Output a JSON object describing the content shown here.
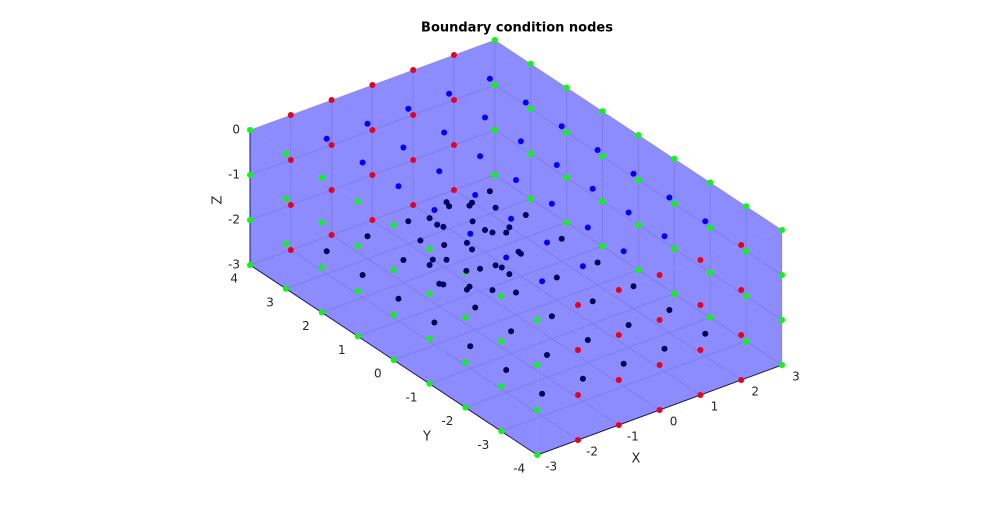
{
  "chart_data": {
    "type": "scatter3",
    "title": "Boundary condition nodes",
    "xlabel": "X",
    "ylabel": "Y",
    "zlabel": "Z",
    "xlim": [
      -3,
      3
    ],
    "ylim": [
      -4,
      4
    ],
    "zlim": [
      -3,
      0
    ],
    "xticks": [
      -3,
      -2,
      -1,
      0,
      1,
      2,
      3
    ],
    "yticks": [
      -4,
      -3,
      -2,
      -1,
      0,
      1,
      2,
      3,
      4
    ],
    "zticks": [
      -3,
      -2,
      -1,
      0
    ],
    "grid": true,
    "box_color": "#0000ff",
    "series": [
      {
        "color": "#000050",
        "x": [
          -2,
          -2,
          -2,
          -2,
          -2,
          -2,
          -2,
          -1,
          -1,
          -1,
          -1,
          -1,
          -1,
          -1,
          0,
          0,
          0,
          0,
          0,
          0,
          0,
          1,
          1,
          1,
          1,
          1,
          1,
          1,
          2,
          2,
          2,
          2,
          2,
          2,
          2
        ],
        "y": [
          3,
          2,
          1,
          0,
          -1,
          -2,
          -3,
          3,
          2,
          1,
          0,
          -1,
          -2,
          -3,
          3,
          2,
          1,
          0,
          -1,
          -2,
          -3,
          3,
          2,
          1,
          0,
          -1,
          -2,
          -3,
          3,
          2,
          1,
          0,
          -1,
          -2,
          -3
        ],
        "z": [
          -2.5,
          -2.5,
          -2.5,
          -2.5,
          -2.5,
          -2.5,
          -2.5,
          -2.5,
          -2.5,
          -2.5,
          -2.5,
          -2.5,
          -2.5,
          -2.5,
          -2.5,
          -2.5,
          -2.5,
          -2.5,
          -2.5,
          -2.5,
          -2.5,
          -2.5,
          -2.5,
          -2.5,
          -2.5,
          -2.5,
          -2.5,
          -2.5,
          -2.5,
          -2.5,
          -2.5,
          -2.5,
          -2.5,
          -2.5,
          -2.5
        ]
      },
      {
        "color": "#00ff00",
        "x": [
          -3,
          -3,
          -3,
          -3,
          -3,
          -3,
          -3,
          -3,
          -3,
          -3,
          -3,
          -3,
          -3,
          -3,
          -3,
          -3,
          -3,
          -3,
          -3,
          -3,
          -3,
          -3,
          -3,
          -3,
          -3,
          -3,
          -3,
          -3,
          -3,
          -3,
          -3,
          -3,
          -3,
          -3,
          -3,
          -3,
          3,
          3,
          3,
          3,
          3,
          3,
          3,
          3,
          3,
          3,
          3,
          3,
          3,
          3,
          3,
          3,
          3,
          3,
          3,
          3,
          3,
          3,
          3,
          3,
          3,
          3,
          3,
          3,
          3,
          3,
          3,
          3,
          3,
          3,
          3,
          3
        ],
        "y": [
          4,
          4,
          4,
          4,
          3,
          3,
          3,
          3,
          2,
          2,
          2,
          2,
          1,
          1,
          1,
          1,
          0,
          0,
          0,
          0,
          -1,
          -1,
          -1,
          -1,
          -2,
          -2,
          -2,
          -2,
          -3,
          -3,
          -3,
          -3,
          -4,
          -4,
          -4,
          -4,
          4,
          4,
          4,
          4,
          3,
          3,
          3,
          3,
          2,
          2,
          2,
          2,
          1,
          1,
          1,
          1,
          0,
          0,
          0,
          0,
          -1,
          -1,
          -1,
          -1,
          -2,
          -2,
          -2,
          -2,
          -3,
          -3,
          -3,
          -3,
          -4,
          -4,
          -4,
          -4
        ],
        "z": [
          0,
          -1,
          -2,
          -3,
          0,
          -1,
          -2,
          -3,
          0,
          -1,
          -2,
          -3,
          0,
          -1,
          -2,
          -3,
          0,
          -1,
          -2,
          -3,
          0,
          -1,
          -2,
          -3,
          0,
          -1,
          -2,
          -3,
          0,
          -1,
          -2,
          -3,
          0,
          -1,
          -2,
          -3,
          0,
          -1,
          -2,
          -3,
          0,
          -1,
          -2,
          -3,
          0,
          -1,
          -2,
          -3,
          0,
          -1,
          -2,
          -3,
          0,
          -1,
          -2,
          -3,
          0,
          -1,
          -2,
          -3,
          0,
          -1,
          -2,
          -3,
          0,
          -1,
          -2,
          -3,
          0,
          -1,
          -2,
          -3
        ]
      },
      {
        "color": "#e8001c",
        "x": [
          -2,
          -2,
          -2,
          -2,
          -1,
          -1,
          -1,
          -1,
          0,
          0,
          0,
          0,
          1,
          1,
          1,
          1,
          2,
          2,
          2,
          2,
          -2,
          -2,
          -2,
          -2,
          -1,
          -1,
          -1,
          -1,
          0,
          0,
          0,
          0,
          1,
          1,
          1,
          1,
          2,
          2,
          2,
          2
        ],
        "y": [
          4,
          4,
          4,
          4,
          4,
          4,
          4,
          4,
          4,
          4,
          4,
          4,
          4,
          4,
          4,
          4,
          4,
          4,
          4,
          4,
          -4,
          -4,
          -4,
          -4,
          -4,
          -4,
          -4,
          -4,
          -4,
          -4,
          -4,
          -4,
          -4,
          -4,
          -4,
          -4,
          -4,
          -4,
          -4,
          -4
        ],
        "z": [
          0,
          -1,
          -2,
          -3,
          0,
          -1,
          -2,
          -3,
          0,
          -1,
          -2,
          -3,
          0,
          -1,
          -2,
          -3,
          0,
          -1,
          -2,
          -3,
          0,
          -1,
          -2,
          -3,
          0,
          -1,
          -2,
          -3,
          0,
          -1,
          -2,
          -3,
          0,
          -1,
          -2,
          -3,
          0,
          -1,
          -2,
          -3
        ]
      },
      {
        "color": "#0000ff",
        "x": [
          -2,
          -2,
          -2,
          -2,
          -2,
          -2,
          -2,
          -1,
          -1,
          -1,
          -1,
          -1,
          -1,
          -1,
          0,
          0,
          0,
          0,
          0,
          0,
          0,
          1,
          1,
          1,
          1,
          1,
          1,
          1,
          2,
          2,
          2,
          2,
          2,
          2,
          2
        ],
        "y": [
          3,
          2,
          1,
          0,
          -1,
          -2,
          -3,
          3,
          2,
          1,
          0,
          -1,
          -2,
          -3,
          3,
          2,
          1,
          0,
          -1,
          -2,
          -3,
          3,
          2,
          1,
          0,
          -1,
          -2,
          -3,
          3,
          2,
          1,
          0,
          -1,
          -2,
          -3
        ],
        "z": [
          0,
          0,
          0,
          0,
          0,
          0,
          0,
          0,
          0,
          0,
          0,
          0,
          0,
          0,
          0,
          0,
          0,
          0,
          0,
          0,
          0,
          0,
          0,
          0,
          0,
          0,
          0,
          0,
          0,
          0,
          0,
          0,
          0,
          0,
          0
        ]
      },
      {
        "color": "#000060",
        "x": [
          0.2,
          -1.6,
          -0.7,
          -0.7,
          -0.7,
          -0.7,
          -0.18,
          -0.18,
          -0.18,
          -0.18,
          -1.22,
          -1.22,
          -1.22,
          -1.22,
          -0.06,
          -0.06,
          -1.34,
          -1.34,
          -0.06,
          -0.06,
          -1.34,
          -1.34,
          -0.7,
          -0.7,
          -0.7,
          -0.7
        ],
        "y": [
          0.5,
          0.5,
          1.4,
          -0.4,
          0.5,
          0.5,
          1.02,
          1.02,
          -0.02,
          -0.02,
          1.02,
          1.02,
          -0.02,
          -0.02,
          1.14,
          -0.14,
          1.14,
          -0.14,
          0.5,
          0.5,
          0.5,
          0.5,
          1.14,
          1.14,
          -0.14,
          -0.14
        ],
        "z": [
          -1.5,
          -1.5,
          -1.5,
          -1.5,
          -0.6,
          -2.4,
          -0.98,
          -2.02,
          -0.98,
          -2.02,
          -0.98,
          -2.02,
          -0.98,
          -2.02,
          -1.5,
          -1.5,
          -1.5,
          -1.5,
          -0.86,
          -2.14,
          -0.86,
          -2.14,
          -0.86,
          -2.14,
          -0.86,
          -2.14
        ]
      }
    ]
  }
}
